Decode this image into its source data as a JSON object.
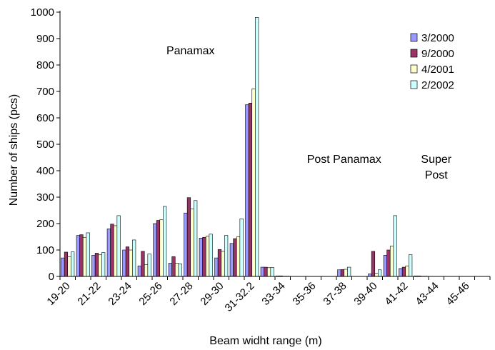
{
  "chart_data": {
    "type": "bar",
    "title": "",
    "xlabel": "Beam widht range (m)",
    "ylabel": "Number of ships (pcs)",
    "ylim": [
      0,
      1000
    ],
    "yticks": [
      0,
      100,
      200,
      300,
      400,
      500,
      600,
      700,
      800,
      900,
      1000
    ],
    "grid": false,
    "legend_position": "top-right",
    "categories": [
      "19-20",
      "20-21",
      "21-22",
      "22-23",
      "23-24",
      "24-25",
      "25-26",
      "26-27",
      "27-28",
      "28-29",
      "29-30",
      "30-31",
      "31-32.2",
      "32.2-33",
      "33-34",
      "34-35",
      "35-36",
      "36-37",
      "37-38",
      "38-39",
      "39-40",
      "40-41",
      "41-42",
      "42-43",
      "43-44",
      "44-45",
      "45-46",
      "46-47"
    ],
    "tick_labels": [
      "19-20",
      "21-22",
      "23-24",
      "25-26",
      "27-28",
      "29-30",
      "31-32.2",
      "33-34",
      "35-36",
      "37-38",
      "39-40",
      "41-42",
      "43-44",
      "45-46"
    ],
    "series": [
      {
        "name": "3/2000",
        "color": "#9999ff",
        "values": [
          70,
          155,
          80,
          180,
          100,
          40,
          200,
          50,
          240,
          145,
          70,
          125,
          650,
          35,
          2,
          0,
          0,
          0,
          25,
          0,
          10,
          80,
          30,
          2,
          0,
          0,
          0,
          0
        ]
      },
      {
        "name": "9/2000",
        "color": "#993366",
        "values": [
          92,
          158,
          88,
          198,
          112,
          95,
          212,
          75,
          298,
          148,
          102,
          143,
          656,
          35,
          2,
          0,
          0,
          0,
          26,
          0,
          95,
          100,
          35,
          2,
          0,
          0,
          0,
          0
        ]
      },
      {
        "name": "4/2001",
        "color": "#ffffcc",
        "values": [
          75,
          148,
          82,
          192,
          100,
          45,
          215,
          50,
          255,
          152,
          95,
          150,
          710,
          33,
          1,
          0,
          0,
          0,
          27,
          0,
          12,
          115,
          40,
          1,
          0,
          0,
          0,
          0
        ]
      },
      {
        "name": "2/2002",
        "color": "#ccffff",
        "values": [
          93,
          165,
          90,
          230,
          138,
          85,
          265,
          48,
          287,
          160,
          155,
          218,
          980,
          34,
          1,
          0,
          0,
          0,
          35,
          0,
          25,
          230,
          82,
          1,
          0,
          0,
          0,
          0
        ]
      }
    ],
    "annotations": [
      {
        "text": "Panamax",
        "x": "27-28",
        "y": 840
      },
      {
        "text": "Post Panamax",
        "x": "37-38",
        "y": 430
      },
      {
        "text": "Super",
        "x": "43-44",
        "y": 430
      },
      {
        "text": "Post",
        "x": "43-44",
        "y": 370
      }
    ]
  }
}
